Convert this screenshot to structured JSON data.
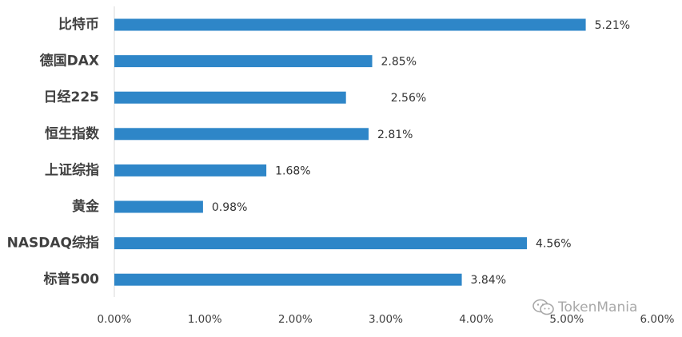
{
  "chart_data": {
    "type": "bar",
    "orientation": "horizontal",
    "categories": [
      "比特币",
      "德国DAX",
      "日经225",
      "恒生指数",
      "上证综指",
      "黄金",
      "NASDAQ综指",
      "标普500"
    ],
    "values": [
      5.21,
      2.85,
      2.56,
      2.81,
      1.68,
      0.98,
      4.56,
      3.84
    ],
    "data_labels": [
      "5.21%",
      "2.85%",
      "2.56%",
      "2.81%",
      "1.68%",
      "0.98%",
      "4.56%",
      "3.84%"
    ],
    "xlim": [
      0,
      6
    ],
    "x_ticks": [
      0,
      1,
      2,
      3,
      4,
      5,
      6
    ],
    "x_tick_labels": [
      "0.00%",
      "1.00%",
      "2.00%",
      "3.00%",
      "4.00%",
      "5.00%",
      "6.00%"
    ],
    "title": "",
    "xlabel": "",
    "ylabel": "",
    "grid": false,
    "legend": "none",
    "bar_color": "#2E86C8",
    "axis_color": "#D9D9D9"
  },
  "watermark": {
    "text": "TokenMania",
    "icon": "wechat-icon",
    "color": "#9a9a9a"
  }
}
